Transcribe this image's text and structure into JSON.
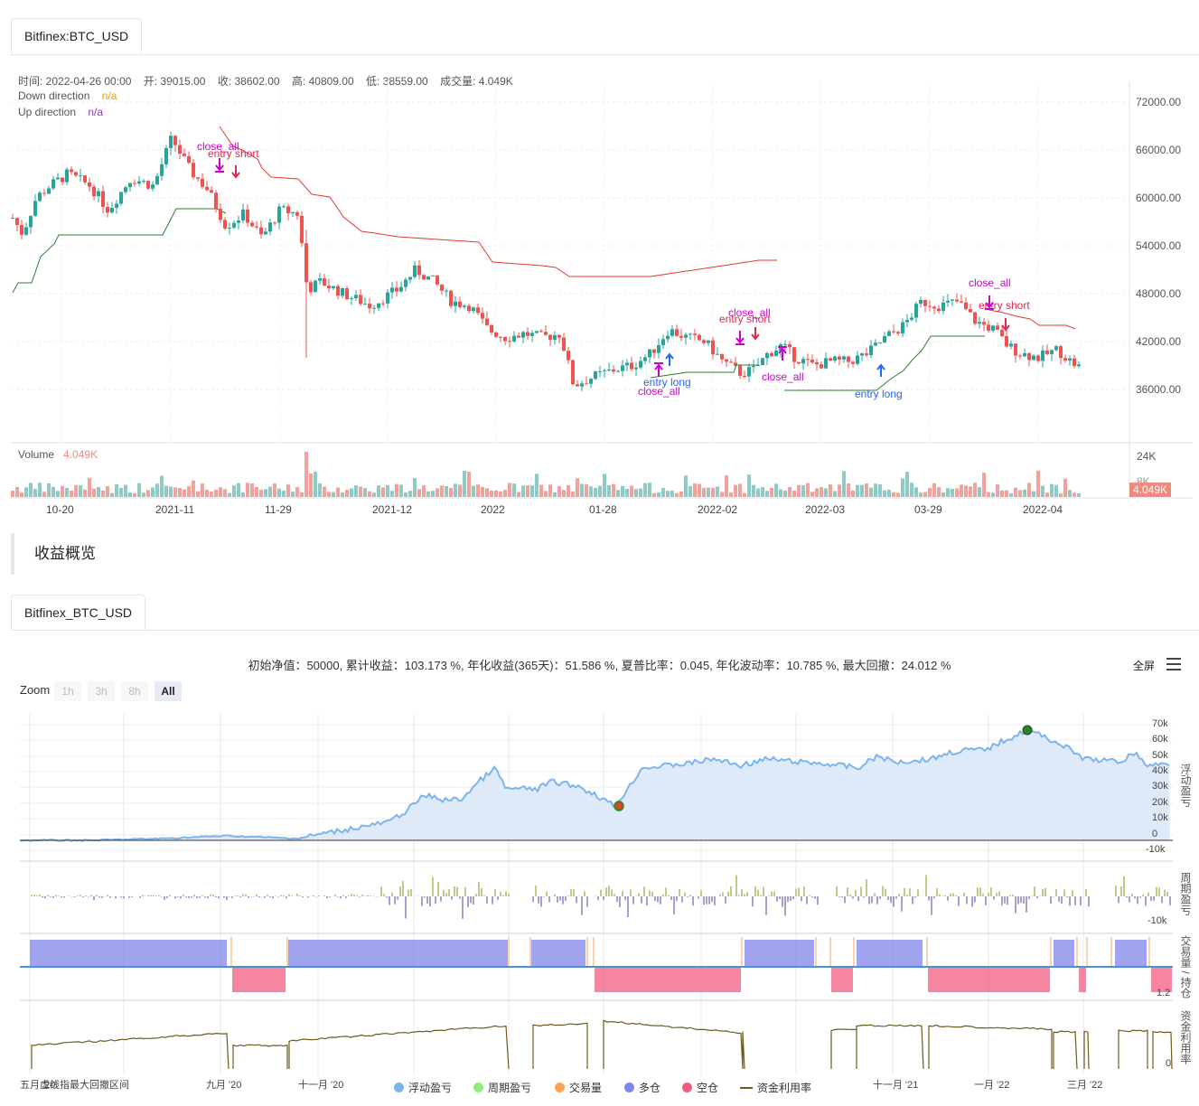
{
  "header_tab": "Bitfinex:BTC_USD",
  "legend": {
    "time_label": "时间: 2022-04-26 00:00",
    "open_label": "开: 39015.00",
    "close_label": "收: 38602.00",
    "high_label": "高: 40809.00",
    "low_label": "低: 38559.00",
    "volume_label": "成交量: 4.049K",
    "down_direction": "Down direction",
    "down_value": "n/a",
    "up_direction": "Up direction",
    "up_value": "n/a"
  },
  "price_axis": [
    "72000.00",
    "66000.00",
    "60000.00",
    "54000.00",
    "48000.00",
    "42000.00",
    "36000.00"
  ],
  "volume_panel": {
    "title": "Volume",
    "value": "4.049K",
    "axis": [
      "24K",
      "8K"
    ],
    "badge": "4.049K"
  },
  "time_axis": [
    "10-20",
    "2021-11",
    "11-29",
    "2021-12",
    "2022",
    "01-28",
    "2022-02",
    "2022-03",
    "03-29",
    "2022-04"
  ],
  "signals": [
    {
      "text": "close_all",
      "color": "#cc00cc"
    },
    {
      "text": "entry short",
      "color": "#e0284f"
    },
    {
      "text": "entry long",
      "color": "#2962ff"
    },
    {
      "text": "close_all",
      "color": "#cc00cc"
    },
    {
      "text": "entry short",
      "color": "#e0284f"
    },
    {
      "text": "close_all",
      "color": "#cc00cc"
    },
    {
      "text": "close_all",
      "color": "#cc00cc"
    },
    {
      "text": "entry long",
      "color": "#2962ff"
    },
    {
      "text": "close_all",
      "color": "#cc00cc"
    },
    {
      "text": "entry short",
      "color": "#e0284f"
    }
  ],
  "section_title": "收益概览",
  "second_tab": "Bitfinex_BTC_USD",
  "summary": "初始净值：50000, 累计收益：103.173 %, 年化收益(365天)：51.586 %, 夏普比率：0.045, 年化波动率：10.785 %, 最大回撤：24.012 %",
  "zoom": {
    "label": "Zoom",
    "buttons": [
      "1h",
      "3h",
      "8h",
      "All"
    ],
    "active": "All"
  },
  "fullscreen": "全屏",
  "equity_axis": [
    "70k",
    "60k",
    "50k",
    "40k",
    "30k",
    "20k",
    "10k",
    "0",
    "-10k"
  ],
  "period_axis": [
    "-10k"
  ],
  "position_axis": [
    "1.2"
  ],
  "usage_axis": [
    "0"
  ],
  "side_labels": [
    "浮动盈亏",
    "周期盈亏",
    "交易量 / 持仓",
    "资金利用率"
  ],
  "bottom_axis": [
    "五月 '20",
    "九月 '20",
    "十一月 '20",
    "十一月 '21",
    "一月 '22",
    "三月 '22"
  ],
  "bottom_overlap": "虚线指最大回撤区间",
  "bottom_legend": [
    {
      "label": "浮动盈亏",
      "color": "#7cb5ec"
    },
    {
      "label": "周期盈亏",
      "color": "#90ed7d"
    },
    {
      "label": "交易量",
      "color": "#f7a35c"
    },
    {
      "label": "多仓",
      "color": "#8085e9"
    },
    {
      "label": "空仓",
      "color": "#f15c80"
    },
    {
      "label": "资金利用率",
      "color": "#6b5a1e"
    }
  ],
  "colors": {
    "up": "#26a69a",
    "down": "#ef5350",
    "equity": "#7cb5ec",
    "long": "#8085e9",
    "short": "#f15c80"
  }
}
